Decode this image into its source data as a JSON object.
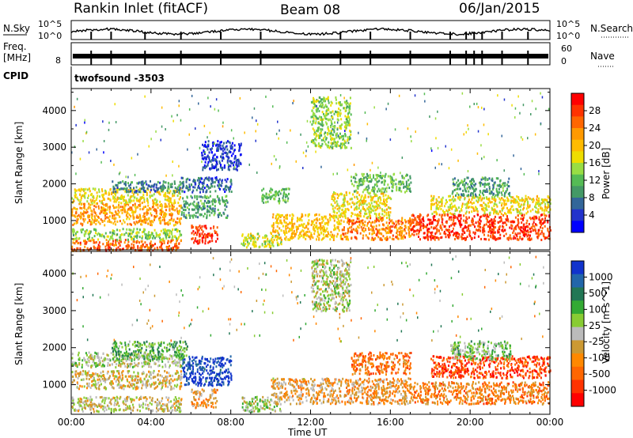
{
  "header": {
    "station": "Rankin Inlet (fitACF)",
    "beam": "Beam 08",
    "date": "06/Jan/2015"
  },
  "top_panel": {
    "nsky_label": "N.Sky",
    "nsky_ticks": [
      "10^5",
      "10^0"
    ],
    "nsearch_label": "N.Search",
    "nsearch_ticks": [
      "10^5",
      "10^0"
    ],
    "freq_label_1": "Freq.",
    "freq_label_2": "[MHz]",
    "freq_tick": "8",
    "nave_ticks": [
      "60",
      "0"
    ],
    "nave_label": "Nave",
    "cpid_label": "CPID",
    "cpid_value": "twofsound -3503",
    "nsky_tick_positions_hours": [
      1,
      2,
      3.7,
      5.5,
      7.5,
      9.5,
      13.5,
      15,
      17,
      19,
      19.8,
      20.2,
      20.6,
      21.6,
      22.9
    ]
  },
  "power_colorbar": {
    "title": "Power [dB]",
    "ticks": [
      "28",
      "24",
      "20",
      "16",
      "12",
      "8",
      "4"
    ],
    "colors": [
      "#ff0000",
      "#ff3300",
      "#ff6600",
      "#ff9900",
      "#ffbb00",
      "#eedd00",
      "#99dd44",
      "#55bb55",
      "#449966",
      "#336699",
      "#2233cc",
      "#0000ff"
    ]
  },
  "velocity_colorbar": {
    "title": "Velocity [m s^-1]",
    "ticks": [
      "1000",
      "500",
      "100",
      "25",
      "-25",
      "-100",
      "-500",
      "-1000"
    ],
    "colors": [
      "#1133cc",
      "#2266aa",
      "#227755",
      "#33aa33",
      "#88cc33",
      "#bbbbbb",
      "#cc9933",
      "#ff8800",
      "#ff6600",
      "#ff3300",
      "#ff0000"
    ]
  },
  "x_axis": {
    "label": "Time UT",
    "ticks": [
      "00:00",
      "04:00",
      "08:00",
      "12:00",
      "16:00",
      "20:00",
      "00:00"
    ]
  },
  "chart_data": {
    "type": "heatmap",
    "panels": [
      {
        "name": "Power",
        "ylabel": "Slant Range [km]",
        "yticks": [
          1000,
          2000,
          3000,
          4000
        ],
        "ylim": [
          200,
          4600
        ],
        "xlim_hours": [
          0,
          24
        ],
        "colorbar_range_db": [
          0,
          32
        ],
        "bands": [
          {
            "t": [
              0,
              5.5
            ],
            "r": [
              200,
              500
            ],
            "value": 26
          },
          {
            "t": [
              0,
              5.5
            ],
            "r": [
              500,
              800
            ],
            "value": 14
          },
          {
            "t": [
              0,
              5.5
            ],
            "r": [
              900,
              1500
            ],
            "value": 22
          },
          {
            "t": [
              0,
              5.5
            ],
            "r": [
              1500,
              1900
            ],
            "value": 18
          },
          {
            "t": [
              2,
              5.8
            ],
            "r": [
              1800,
              2100
            ],
            "value": 8
          },
          {
            "t": [
              5.5,
              7.8
            ],
            "r": [
              1100,
              1700
            ],
            "value": 10
          },
          {
            "t": [
              5.5,
              8
            ],
            "r": [
              1800,
              2200
            ],
            "value": 6
          },
          {
            "t": [
              6,
              7.3
            ],
            "r": [
              400,
              900
            ],
            "value": 28
          },
          {
            "t": [
              6.5,
              8.5
            ],
            "r": [
              2400,
              3200
            ],
            "value": 4
          },
          {
            "t": [
              8.5,
              10.5
            ],
            "r": [
              300,
              700
            ],
            "value": 16
          },
          {
            "t": [
              10,
              13.5
            ],
            "r": [
              500,
              1200
            ],
            "value": 20
          },
          {
            "t": [
              9.5,
              11
            ],
            "r": [
              1500,
              1900
            ],
            "value": 12
          },
          {
            "t": [
              13.5,
              17
            ],
            "r": [
              500,
              1100
            ],
            "value": 24
          },
          {
            "t": [
              13,
              16
            ],
            "r": [
              1100,
              1800
            ],
            "value": 18
          },
          {
            "t": [
              14,
              17
            ],
            "r": [
              1800,
              2300
            ],
            "value": 12
          },
          {
            "t": [
              17,
              24
            ],
            "r": [
              500,
              1200
            ],
            "value": 28
          },
          {
            "t": [
              18,
              24
            ],
            "r": [
              1200,
              1700
            ],
            "value": 18
          },
          {
            "t": [
              19,
              22
            ],
            "r": [
              1700,
              2200
            ],
            "value": 10
          },
          {
            "t": [
              12,
              14
            ],
            "r": [
              3000,
              4400
            ],
            "value": 14
          }
        ]
      },
      {
        "name": "Velocity",
        "ylabel": "Slant Range [km]",
        "yticks": [
          1000,
          2000,
          3000,
          4000
        ],
        "ylim": [
          200,
          4600
        ],
        "xlim_hours": [
          0,
          24
        ],
        "colorbar_range_ms": [
          -1000,
          1000
        ],
        "bands": [
          {
            "t": [
              0,
              5.5
            ],
            "r": [
              300,
              700
            ],
            "value": -25
          },
          {
            "t": [
              0,
              5.5
            ],
            "r": [
              900,
              1400
            ],
            "value": -100
          },
          {
            "t": [
              0,
              5.5
            ],
            "r": [
              1500,
              1900
            ],
            "value": 100
          },
          {
            "t": [
              2,
              5.8
            ],
            "r": [
              1700,
              2200
            ],
            "value": 300
          },
          {
            "t": [
              5.5,
              8
            ],
            "r": [
              1000,
              1800
            ],
            "value": 900
          },
          {
            "t": [
              6,
              7.3
            ],
            "r": [
              400,
              900
            ],
            "value": -300
          },
          {
            "t": [
              8.5,
              10.5
            ],
            "r": [
              300,
              700
            ],
            "value": 100
          },
          {
            "t": [
              10,
              13.5
            ],
            "r": [
              500,
              1200
            ],
            "value": -200
          },
          {
            "t": [
              13.5,
              17
            ],
            "r": [
              500,
              1200
            ],
            "value": -300
          },
          {
            "t": [
              14,
              17
            ],
            "r": [
              1300,
              1900
            ],
            "value": -500
          },
          {
            "t": [
              17,
              24
            ],
            "r": [
              500,
              1100
            ],
            "value": -400
          },
          {
            "t": [
              18,
              24
            ],
            "r": [
              1200,
              1800
            ],
            "value": -700
          },
          {
            "t": [
              19,
              22
            ],
            "r": [
              1700,
              2200
            ],
            "value": 200
          },
          {
            "t": [
              12,
              14
            ],
            "r": [
              3000,
              4400
            ],
            "value": 60
          }
        ]
      }
    ]
  }
}
